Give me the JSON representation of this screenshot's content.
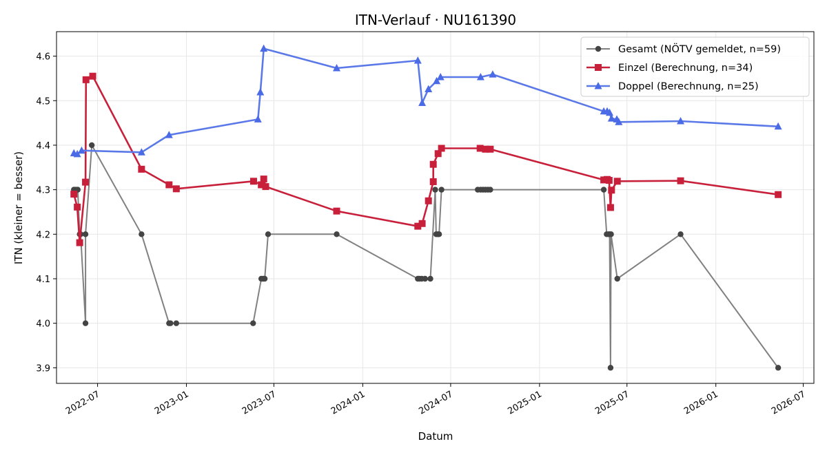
{
  "chart_data": {
    "type": "line",
    "title": "ITN-Verlauf · NU161390",
    "xlabel": "Datum",
    "ylabel": "ITN  (kleiner = besser)",
    "x_axis_type": "date",
    "xlim": [
      "2022-04-07",
      "2026-07-23"
    ],
    "ylim": [
      3.865,
      4.655
    ],
    "x_ticks": [
      "2022-07-01",
      "2023-01-01",
      "2023-07-01",
      "2024-01-01",
      "2024-07-01",
      "2025-01-01",
      "2025-07-01",
      "2026-01-01",
      "2026-07-01"
    ],
    "x_tick_labels": [
      "2022-07",
      "2023-01",
      "2023-07",
      "2024-01",
      "2024-07",
      "2025-01",
      "2025-07",
      "2026-01",
      "2026-07"
    ],
    "y_ticks": [
      3.9,
      4.0,
      4.1,
      4.2,
      4.3,
      4.4,
      4.5,
      4.6
    ],
    "y_tick_labels": [
      "3.9",
      "4.0",
      "4.1",
      "4.2",
      "4.3",
      "4.4",
      "4.5",
      "4.6"
    ],
    "grid": true,
    "legend_position": "top-right",
    "series": [
      {
        "name": "Gesamt (NÖTV gemeldet, n=59)",
        "color": "#444444",
        "line_color": "#808080",
        "marker": "circle",
        "points": [
          [
            "2022-05-13",
            4.3
          ],
          [
            "2022-05-15",
            4.3
          ],
          [
            "2022-05-18",
            4.3
          ],
          [
            "2022-05-21",
            4.3
          ],
          [
            "2022-05-25",
            4.2
          ],
          [
            "2022-05-27",
            4.2
          ],
          [
            "2022-06-06",
            4.0
          ],
          [
            "2022-06-06",
            4.2
          ],
          [
            "2022-06-19",
            4.4
          ],
          [
            "2022-09-30",
            4.2
          ],
          [
            "2022-11-26",
            4.0
          ],
          [
            "2022-11-29",
            4.0
          ],
          [
            "2022-12-11",
            4.0
          ],
          [
            "2023-05-19",
            4.0
          ],
          [
            "2023-06-05",
            4.1
          ],
          [
            "2023-06-09",
            4.1
          ],
          [
            "2023-06-12",
            4.1
          ],
          [
            "2023-06-19",
            4.2
          ],
          [
            "2023-11-08",
            4.2
          ],
          [
            "2024-04-24",
            4.1
          ],
          [
            "2024-04-27",
            4.1
          ],
          [
            "2024-05-02",
            4.1
          ],
          [
            "2024-05-09",
            4.1
          ],
          [
            "2024-05-20",
            4.1
          ],
          [
            "2024-05-30",
            4.3
          ],
          [
            "2024-06-01",
            4.2
          ],
          [
            "2024-06-04",
            4.2
          ],
          [
            "2024-06-07",
            4.2
          ],
          [
            "2024-06-12",
            4.3
          ],
          [
            "2024-08-26",
            4.3
          ],
          [
            "2024-09-01",
            4.3
          ],
          [
            "2024-09-06",
            4.3
          ],
          [
            "2024-09-11",
            4.3
          ],
          [
            "2024-09-16",
            4.3
          ],
          [
            "2024-09-21",
            4.3
          ],
          [
            "2025-05-14",
            4.3
          ],
          [
            "2025-05-20",
            4.2
          ],
          [
            "2025-05-24",
            4.2
          ],
          [
            "2025-05-26",
            4.2
          ],
          [
            "2025-05-28",
            3.9
          ],
          [
            "2025-05-29",
            4.2
          ],
          [
            "2025-06-11",
            4.1
          ],
          [
            "2025-10-20",
            4.2
          ],
          [
            "2026-05-10",
            3.9
          ]
        ]
      },
      {
        "name": "Einzel (Berechnung, n=34)",
        "color": "#c8203a",
        "line_color": "#c8203a",
        "marker": "square",
        "points": [
          [
            "2022-05-13",
            4.29
          ],
          [
            "2022-05-20",
            4.261
          ],
          [
            "2022-05-25",
            4.181
          ],
          [
            "2022-06-06",
            4.317
          ],
          [
            "2022-06-07",
            4.547
          ],
          [
            "2022-06-21",
            4.555
          ],
          [
            "2022-09-30",
            4.346
          ],
          [
            "2022-11-26",
            4.311
          ],
          [
            "2022-12-11",
            4.302
          ],
          [
            "2023-05-20",
            4.319
          ],
          [
            "2023-06-05",
            4.311
          ],
          [
            "2023-06-10",
            4.324
          ],
          [
            "2023-06-14",
            4.307
          ],
          [
            "2023-11-08",
            4.252
          ],
          [
            "2024-04-24",
            4.218
          ],
          [
            "2024-05-03",
            4.224
          ],
          [
            "2024-05-16",
            4.275
          ],
          [
            "2024-05-26",
            4.318
          ],
          [
            "2024-05-26",
            4.357
          ],
          [
            "2024-06-05",
            4.381
          ],
          [
            "2024-06-12",
            4.393
          ],
          [
            "2024-08-31",
            4.393
          ],
          [
            "2024-09-11",
            4.391
          ],
          [
            "2024-09-21",
            4.391
          ],
          [
            "2025-05-14",
            4.322
          ],
          [
            "2025-05-21",
            4.323
          ],
          [
            "2025-05-25",
            4.321
          ],
          [
            "2025-05-28",
            4.26
          ],
          [
            "2025-05-30",
            4.299
          ],
          [
            "2025-06-11",
            4.319
          ],
          [
            "2025-10-20",
            4.32
          ],
          [
            "2026-05-10",
            4.289
          ]
        ]
      },
      {
        "name": "Doppel (Berechnung, n=25)",
        "color": "#4a6ae6",
        "line_color": "#5a78e8",
        "marker": "triangle",
        "points": [
          [
            "2022-05-13",
            4.382
          ],
          [
            "2022-05-20",
            4.38
          ],
          [
            "2022-05-29",
            4.388
          ],
          [
            "2022-09-30",
            4.384
          ],
          [
            "2022-11-26",
            4.423
          ],
          [
            "2023-05-29",
            4.458
          ],
          [
            "2023-06-03",
            4.519
          ],
          [
            "2023-06-10",
            4.617
          ],
          [
            "2023-11-08",
            4.573
          ],
          [
            "2024-04-24",
            4.59
          ],
          [
            "2024-05-03",
            4.495
          ],
          [
            "2024-05-16",
            4.526
          ],
          [
            "2024-06-02",
            4.544
          ],
          [
            "2024-06-10",
            4.553
          ],
          [
            "2024-09-01",
            4.553
          ],
          [
            "2024-09-26",
            4.559
          ],
          [
            "2025-05-14",
            4.476
          ],
          [
            "2025-05-21",
            4.476
          ],
          [
            "2025-05-26",
            4.473
          ],
          [
            "2025-05-30",
            4.46
          ],
          [
            "2025-06-10",
            4.458
          ],
          [
            "2025-06-14",
            4.452
          ],
          [
            "2025-10-20",
            4.454
          ],
          [
            "2026-05-10",
            4.442
          ]
        ]
      }
    ]
  }
}
